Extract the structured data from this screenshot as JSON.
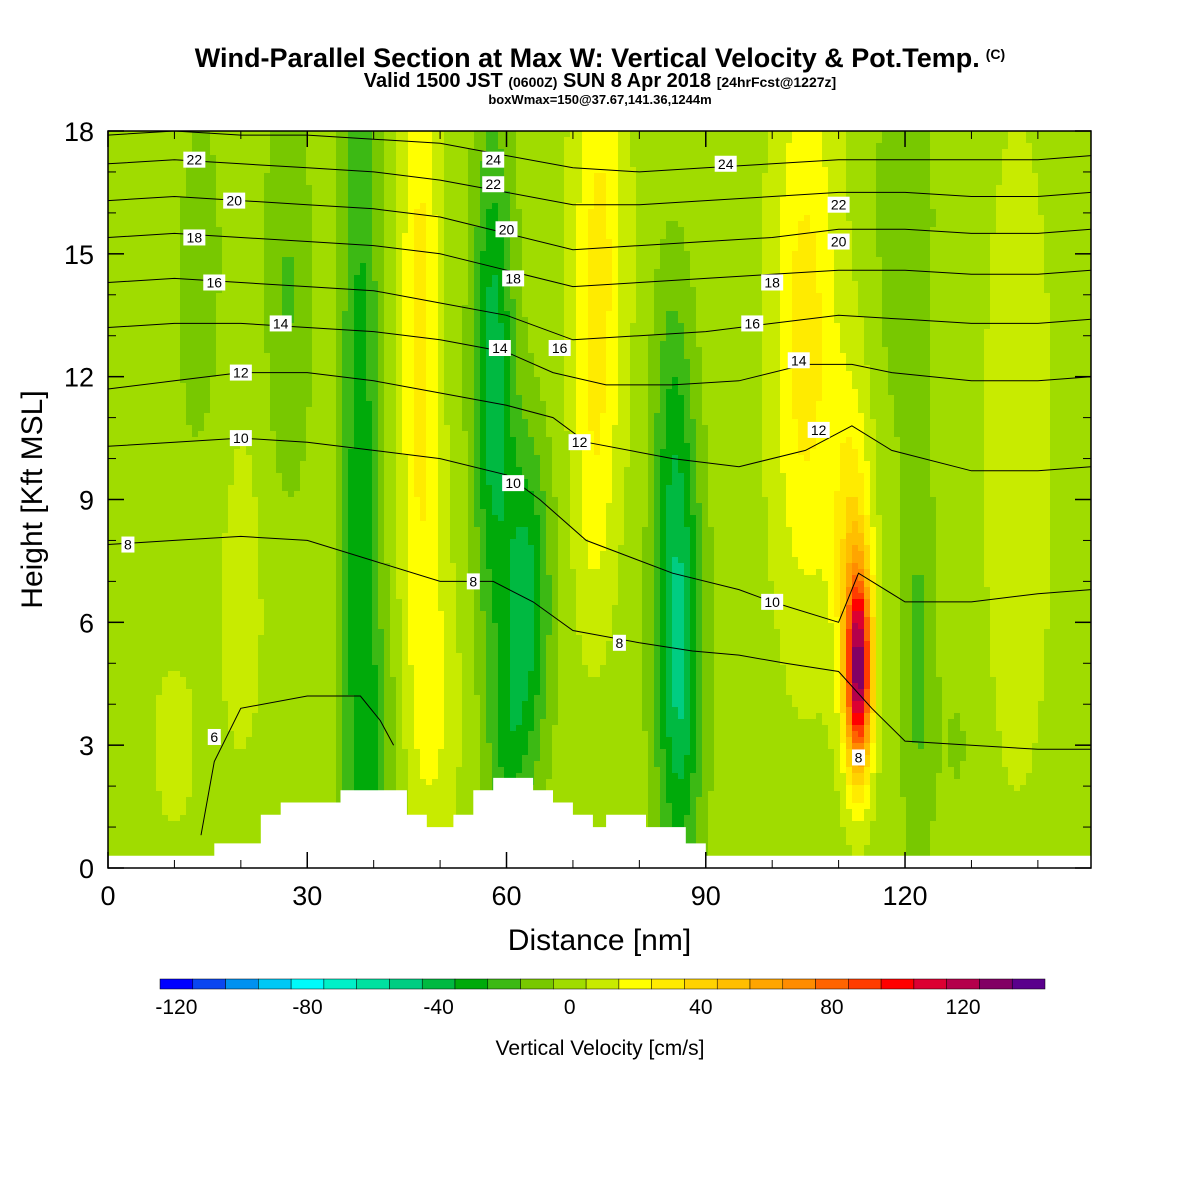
{
  "title": {
    "main": "Wind-Parallel Section at Max W: Vertical Velocity & Pot.Temp.",
    "copyright_tag": "(C)",
    "valid_prefix": "Valid 1500 JST",
    "valid_utc": "(0600Z)",
    "valid_date": "SUN 8 Apr 2018",
    "forecast": "[24hrFcst@1227z]",
    "box_info": "boxWmax=150@37.67,141.36,1244m"
  },
  "chart_data": {
    "type": "heatmap",
    "title": "Wind-Parallel Section at Max W: Vertical Velocity & Pot.Temp.",
    "xlabel": "Distance [nm]",
    "ylabel": "Height [Kft MSL]",
    "xlim": [
      0,
      148
    ],
    "ylim": [
      0,
      18
    ],
    "x_ticks": [
      0,
      30,
      60,
      90,
      120
    ],
    "y_ticks": [
      0,
      3,
      6,
      9,
      12,
      15,
      18
    ],
    "colorbar": {
      "label": "Vertical Velocity [cm/s]",
      "ticks": [
        -120,
        -80,
        -40,
        0,
        40,
        80,
        120
      ],
      "min": -125,
      "max": 130,
      "step": 10,
      "colors": [
        "#0000ff",
        "#0a46f0",
        "#0091f0",
        "#00c8f5",
        "#00fafa",
        "#00f0c8",
        "#00e1a0",
        "#00cd82",
        "#00b941",
        "#00aa0a",
        "#3cb914",
        "#78c800",
        "#a0dc00",
        "#c8eb00",
        "#ffff00",
        "#ffeb00",
        "#ffd200",
        "#ffbe00",
        "#ffa500",
        "#ff8c00",
        "#ff6400",
        "#ff3c00",
        "#ff0000",
        "#dc0032",
        "#b4004b",
        "#820064",
        "#5a008c"
      ]
    },
    "velocity_features": [
      {
        "x": -6,
        "z": 10,
        "w": 6,
        "sx": 8,
        "sz": 15
      },
      {
        "x": 14,
        "z": 14,
        "w": -10,
        "sx": 4,
        "sz": 5
      },
      {
        "x": 27,
        "z": 14,
        "w": -16,
        "sx": 3.5,
        "sz": 5
      },
      {
        "x": 10,
        "z": 3,
        "w": 12,
        "sx": 3,
        "sz": 2
      },
      {
        "x": 20,
        "z": 7,
        "w": 8,
        "sx": 5,
        "sz": 6
      },
      {
        "x": 38,
        "z": 8,
        "w": -32,
        "sx": 3,
        "sz": 14
      },
      {
        "x": 41,
        "z": 3,
        "w": -12,
        "sx": 3,
        "sz": 3
      },
      {
        "x": 47,
        "z": 13,
        "w": 30,
        "sx": 3,
        "sz": 8
      },
      {
        "x": 49,
        "z": 4,
        "w": 15,
        "sx": 4,
        "sz": 4
      },
      {
        "x": 58,
        "z": 12,
        "w": -42,
        "sx": 3,
        "sz": 6
      },
      {
        "x": 63,
        "z": 6.5,
        "w": -40,
        "sx": 3.5,
        "sz": 4
      },
      {
        "x": 60,
        "z": 3,
        "w": -20,
        "sx": 3,
        "sz": 2.5
      },
      {
        "x": 74,
        "z": 15,
        "w": 28,
        "sx": 4,
        "sz": 6
      },
      {
        "x": 73,
        "z": 9,
        "w": 12,
        "sx": 3,
        "sz": 4
      },
      {
        "x": 86,
        "z": 5,
        "w": -48,
        "sx": 3.5,
        "sz": 5
      },
      {
        "x": 85,
        "z": 11,
        "w": -20,
        "sx": 3,
        "sz": 4
      },
      {
        "x": 105,
        "z": 13,
        "w": 30,
        "sx": 5,
        "sz": 7
      },
      {
        "x": 113,
        "z": 4.8,
        "w": 120,
        "sx": 2,
        "sz": 2.5
      },
      {
        "x": 112,
        "z": 8,
        "w": 30,
        "sx": 3,
        "sz": 4
      },
      {
        "x": 122,
        "z": 5,
        "w": -18,
        "sx": 2.5,
        "sz": 5
      },
      {
        "x": 120,
        "z": 16,
        "w": -15,
        "sx": 4,
        "sz": 5
      },
      {
        "x": 137,
        "z": 10,
        "w": 14,
        "sx": 5,
        "sz": 8
      },
      {
        "x": 128,
        "z": 3,
        "w": -6,
        "sx": 3,
        "sz": 2
      }
    ],
    "terrain": {
      "x": [
        0,
        16,
        16,
        23,
        23,
        26,
        26,
        35,
        35,
        45,
        45,
        48,
        48,
        52,
        52,
        55,
        55,
        58,
        58,
        64,
        64,
        67,
        67,
        70,
        70,
        73,
        73,
        75,
        75,
        81,
        81,
        87,
        87,
        90,
        90,
        93,
        93,
        148
      ],
      "height_kft": [
        0.3,
        0.3,
        0.6,
        0.6,
        1.3,
        1.3,
        1.6,
        1.6,
        1.9,
        1.9,
        1.3,
        1.3,
        1.0,
        1.0,
        1.3,
        1.3,
        1.9,
        1.9,
        2.2,
        2.2,
        1.9,
        1.9,
        1.6,
        1.6,
        1.3,
        1.3,
        1.0,
        1.0,
        1.3,
        1.3,
        1.0,
        1.0,
        0.6,
        0.6,
        0.3,
        0.3,
        0.3,
        0.3
      ]
    },
    "theta_contours": [
      {
        "label": "6",
        "label_pos": [
          16,
          3.2
        ],
        "x": [
          14,
          16,
          20,
          30,
          38,
          41,
          43
        ],
        "z": [
          0.8,
          2.6,
          3.9,
          4.2,
          4.2,
          3.6,
          3.0
        ]
      },
      {
        "label": "8",
        "label_pos": [
          3,
          7.9
        ],
        "x": [
          0,
          10,
          20,
          30,
          40,
          50,
          58,
          64,
          70,
          80,
          88,
          95,
          102,
          110,
          115,
          120,
          130,
          140,
          148
        ],
        "z": [
          7.9,
          8.0,
          8.1,
          8.0,
          7.5,
          7.0,
          7.0,
          6.5,
          5.8,
          5.5,
          5.3,
          5.2,
          5.0,
          4.8,
          3.9,
          3.1,
          3.0,
          2.9,
          2.9
        ]
      },
      {
        "label": "10",
        "label_pos": [
          20,
          10.5
        ],
        "x": [
          0,
          10,
          20,
          30,
          40,
          50,
          60,
          65,
          72,
          85,
          95,
          100,
          110,
          113,
          120,
          130,
          140,
          148
        ],
        "z": [
          10.3,
          10.4,
          10.5,
          10.4,
          10.2,
          10.0,
          9.6,
          9.0,
          8.0,
          7.2,
          6.8,
          6.5,
          6.0,
          7.2,
          6.5,
          6.5,
          6.7,
          6.8
        ]
      },
      {
        "label": "12",
        "label_pos": [
          20,
          12.1
        ],
        "x": [
          0,
          10,
          20,
          30,
          40,
          50,
          60,
          67,
          72,
          85,
          95,
          105,
          112,
          118,
          130,
          140,
          148
        ],
        "z": [
          11.7,
          11.9,
          12.1,
          12.1,
          11.9,
          11.6,
          11.3,
          11.0,
          10.4,
          10.0,
          9.8,
          10.2,
          10.8,
          10.2,
          9.7,
          9.7,
          9.8
        ]
      },
      {
        "label": "14",
        "label_pos": [
          26,
          13.3
        ],
        "x": [
          0,
          10,
          20,
          30,
          40,
          50,
          60,
          67,
          75,
          85,
          95,
          105,
          112,
          118,
          130,
          140,
          148
        ],
        "z": [
          13.2,
          13.3,
          13.3,
          13.2,
          13.1,
          12.9,
          12.6,
          12.1,
          11.8,
          11.8,
          11.9,
          12.3,
          12.3,
          12.1,
          11.9,
          11.9,
          12.0
        ]
      },
      {
        "label": "16",
        "label_pos": [
          16,
          14.3
        ],
        "x": [
          0,
          10,
          20,
          30,
          40,
          50,
          60,
          70,
          80,
          90,
          100,
          110,
          120,
          130,
          140,
          148
        ],
        "z": [
          14.3,
          14.4,
          14.3,
          14.2,
          14.1,
          13.8,
          13.5,
          12.9,
          13.0,
          13.1,
          13.3,
          13.5,
          13.4,
          13.3,
          13.3,
          13.4
        ]
      },
      {
        "label": "18",
        "label_pos": [
          13,
          15.4
        ],
        "x": [
          0,
          10,
          20,
          30,
          40,
          50,
          60,
          70,
          80,
          90,
          100,
          110,
          120,
          130,
          140,
          148
        ],
        "z": [
          15.4,
          15.5,
          15.4,
          15.3,
          15.2,
          15.0,
          14.6,
          14.2,
          14.3,
          14.4,
          14.5,
          14.6,
          14.6,
          14.5,
          14.5,
          14.6
        ]
      },
      {
        "label": "20",
        "label_pos": [
          19,
          16.3
        ],
        "x": [
          0,
          10,
          20,
          30,
          40,
          50,
          60,
          70,
          80,
          90,
          100,
          110,
          120,
          130,
          140,
          148
        ],
        "z": [
          16.3,
          16.4,
          16.3,
          16.2,
          16.1,
          15.9,
          15.5,
          15.1,
          15.2,
          15.3,
          15.4,
          15.6,
          15.6,
          15.5,
          15.5,
          15.6
        ]
      },
      {
        "label": "22",
        "label_pos": [
          13,
          17.3
        ],
        "x": [
          0,
          10,
          20,
          30,
          40,
          50,
          60,
          70,
          80,
          90,
          100,
          110,
          120,
          130,
          140,
          148
        ],
        "z": [
          17.2,
          17.3,
          17.2,
          17.1,
          17.0,
          16.8,
          16.5,
          16.2,
          16.2,
          16.3,
          16.4,
          16.5,
          16.5,
          16.4,
          16.4,
          16.5
        ]
      },
      {
        "label": "24",
        "label_pos": [
          93,
          17.2
        ],
        "x": [
          0,
          10,
          20,
          30,
          40,
          50,
          60,
          70,
          80,
          90,
          100,
          110,
          120,
          130,
          140,
          148
        ],
        "z": [
          17.9,
          18.0,
          17.9,
          17.9,
          17.8,
          17.7,
          17.4,
          17.1,
          17.0,
          17.1,
          17.2,
          17.3,
          17.3,
          17.3,
          17.3,
          17.4
        ]
      }
    ],
    "extra_contour_labels": [
      {
        "label": "24",
        "x": 58,
        "z": 17.3
      },
      {
        "label": "22",
        "x": 58,
        "z": 16.7
      },
      {
        "label": "20",
        "x": 60,
        "z": 15.6
      },
      {
        "label": "18",
        "x": 61,
        "z": 14.4
      },
      {
        "label": "14",
        "x": 59,
        "z": 12.7
      },
      {
        "label": "16",
        "x": 68,
        "z": 12.7
      },
      {
        "label": "12",
        "x": 71,
        "z": 10.4
      },
      {
        "label": "10",
        "x": 61,
        "z": 9.4
      },
      {
        "label": "8",
        "x": 55,
        "z": 7.0
      },
      {
        "label": "8",
        "x": 77,
        "z": 5.5
      },
      {
        "label": "10",
        "x": 100,
        "z": 6.5
      },
      {
        "label": "12",
        "x": 107,
        "z": 10.7
      },
      {
        "label": "14",
        "x": 104,
        "z": 12.4
      },
      {
        "label": "16",
        "x": 97,
        "z": 13.3
      },
      {
        "label": "18",
        "x": 100,
        "z": 14.3
      },
      {
        "label": "20",
        "x": 110,
        "z": 15.3
      },
      {
        "label": "22",
        "x": 110,
        "z": 16.2
      },
      {
        "label": "8",
        "x": 113,
        "z": 2.7
      }
    ]
  }
}
